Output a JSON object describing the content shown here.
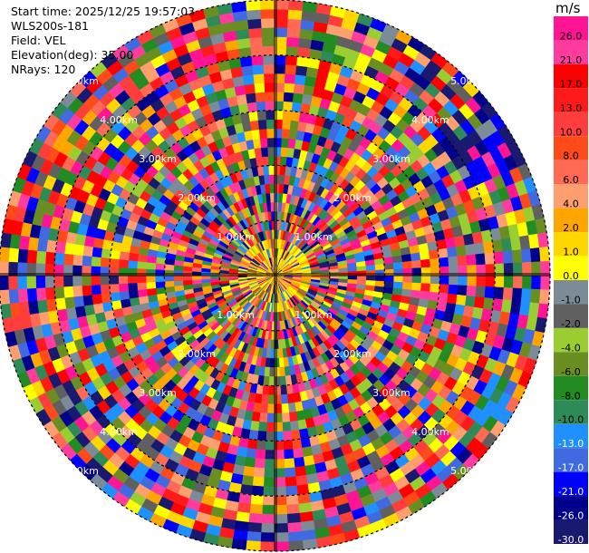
{
  "info": {
    "start_time": "Start time: 2025/12/25 19:57:03",
    "station": "WLS200s-181",
    "field": "Field: VEL",
    "elevation": "Elevation(deg): 35.00",
    "nrays": "NRays: 120"
  },
  "chart_data": {
    "type": "heatmap",
    "projection": "polar-ppi",
    "field": "VEL",
    "unit": "m/s",
    "nrays": 120,
    "elevation_deg": 35.0,
    "max_range_km": 5.0,
    "range_rings_km": [
      1,
      2,
      3,
      4,
      5
    ],
    "range_labels": [
      "1.00km",
      "2.00km",
      "3.00km",
      "4.00km",
      "5.00km"
    ],
    "colorbar": {
      "unit": "m/s",
      "ticks": [
        "26.0",
        "21.0",
        "17.0",
        "13.0",
        "10.0",
        "8.0",
        "6.0",
        "4.0",
        "2.0",
        "1.0",
        "0.0",
        "-1.0",
        "-2.0",
        "-4.0",
        "-6.0",
        "-8.0",
        "-10.0",
        "-13.0",
        "-17.0",
        "-21.0",
        "-26.0",
        "-30.0"
      ],
      "colors": [
        "#ff1493",
        "#ff3c9e",
        "#ff0000",
        "#ff1a1a",
        "#ff3d3d",
        "#ff4a1a",
        "#ff6a55",
        "#ff9f70",
        "#ffa500",
        "#ffd700",
        "#ffff00",
        "#7b8b97",
        "#606060",
        "#9acd32",
        "#6b8e23",
        "#228b22",
        "#2e8b57",
        "#1e90ff",
        "#4169e1",
        "#0000ff",
        "#00008b",
        "#191970"
      ]
    }
  }
}
